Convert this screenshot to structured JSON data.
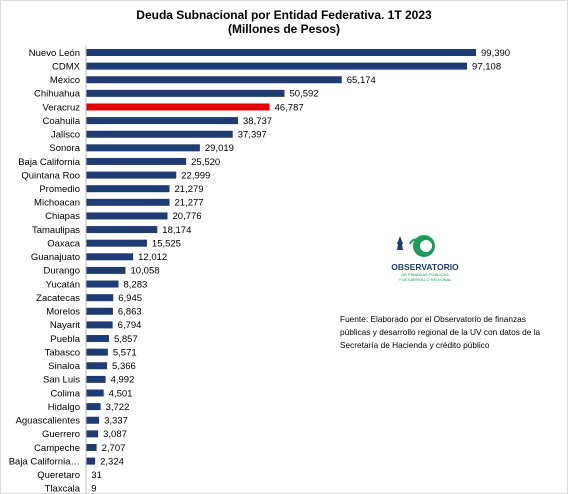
{
  "chart_data": {
    "type": "bar",
    "orientation": "horizontal",
    "title": "Deuda Subnacional por Entidad Federativa. 1T 2023",
    "subtitle": "(Millones de Pesos)",
    "categories": [
      "Nuevo León",
      "CDMX",
      "México",
      "Chihuahua",
      "Veracruz",
      "Coahuila",
      "Jalisco",
      "Sonora",
      "Baja California",
      "Quintana Roo",
      "Promedio",
      "Michoacan",
      "Chiapas",
      "Tamaulipas",
      "Oaxaca",
      "Guanajuato",
      "Durango",
      "Yucatán",
      "Zacatecas",
      "Morelos",
      "Nayarit",
      "Puebla",
      "Tabasco",
      "Sinaloa",
      "San Luis",
      "Colima",
      "Hidalgo",
      "Aguascalientes",
      "Guerrero",
      "Campeche",
      "Baja California…",
      "Queretaro",
      "Tlaxcala"
    ],
    "values": [
      99390,
      97108,
      65174,
      50592,
      46787,
      38737,
      37397,
      29019,
      25520,
      22999,
      21279,
      21277,
      20776,
      18174,
      15525,
      12012,
      10058,
      8283,
      6945,
      6863,
      6794,
      5857,
      5571,
      5366,
      4992,
      4501,
      3722,
      3337,
      3087,
      2707,
      2324,
      31,
      9
    ],
    "value_labels": [
      "99,390",
      "97,108",
      "65,174",
      "50,592",
      "46,787",
      "38,737",
      "37,397",
      "29,019",
      "25,520",
      "22,999",
      "21,279",
      "21,277",
      "20,776",
      "18,174",
      "15,525",
      "12,012",
      "10,058",
      "8,283",
      "6,945",
      "6,863",
      "6,794",
      "5,857",
      "5,571",
      "5,366",
      "4,992",
      "4,501",
      "3,722",
      "3,337",
      "3,087",
      "2,707",
      "2,324",
      "31",
      "9"
    ],
    "colors": {
      "default": "#1f3b73",
      "highlight": "#e60000"
    },
    "highlight_category": "Veracruz",
    "grid": false
  },
  "source_note": "Fuente: Elaborado por el Observatorio de finanzas públicas y desarrollo regional de la UV con datos de la Secretaría de Hacienda y crédito público",
  "logo": {
    "name": "OBSERVATORIO",
    "line1": "DE FINANZAS PÚBLICAS",
    "line2": "Y DESARROLLO REGIONAL",
    "colors": {
      "green": "#1a9b5a",
      "navy": "#1f3b73"
    }
  }
}
